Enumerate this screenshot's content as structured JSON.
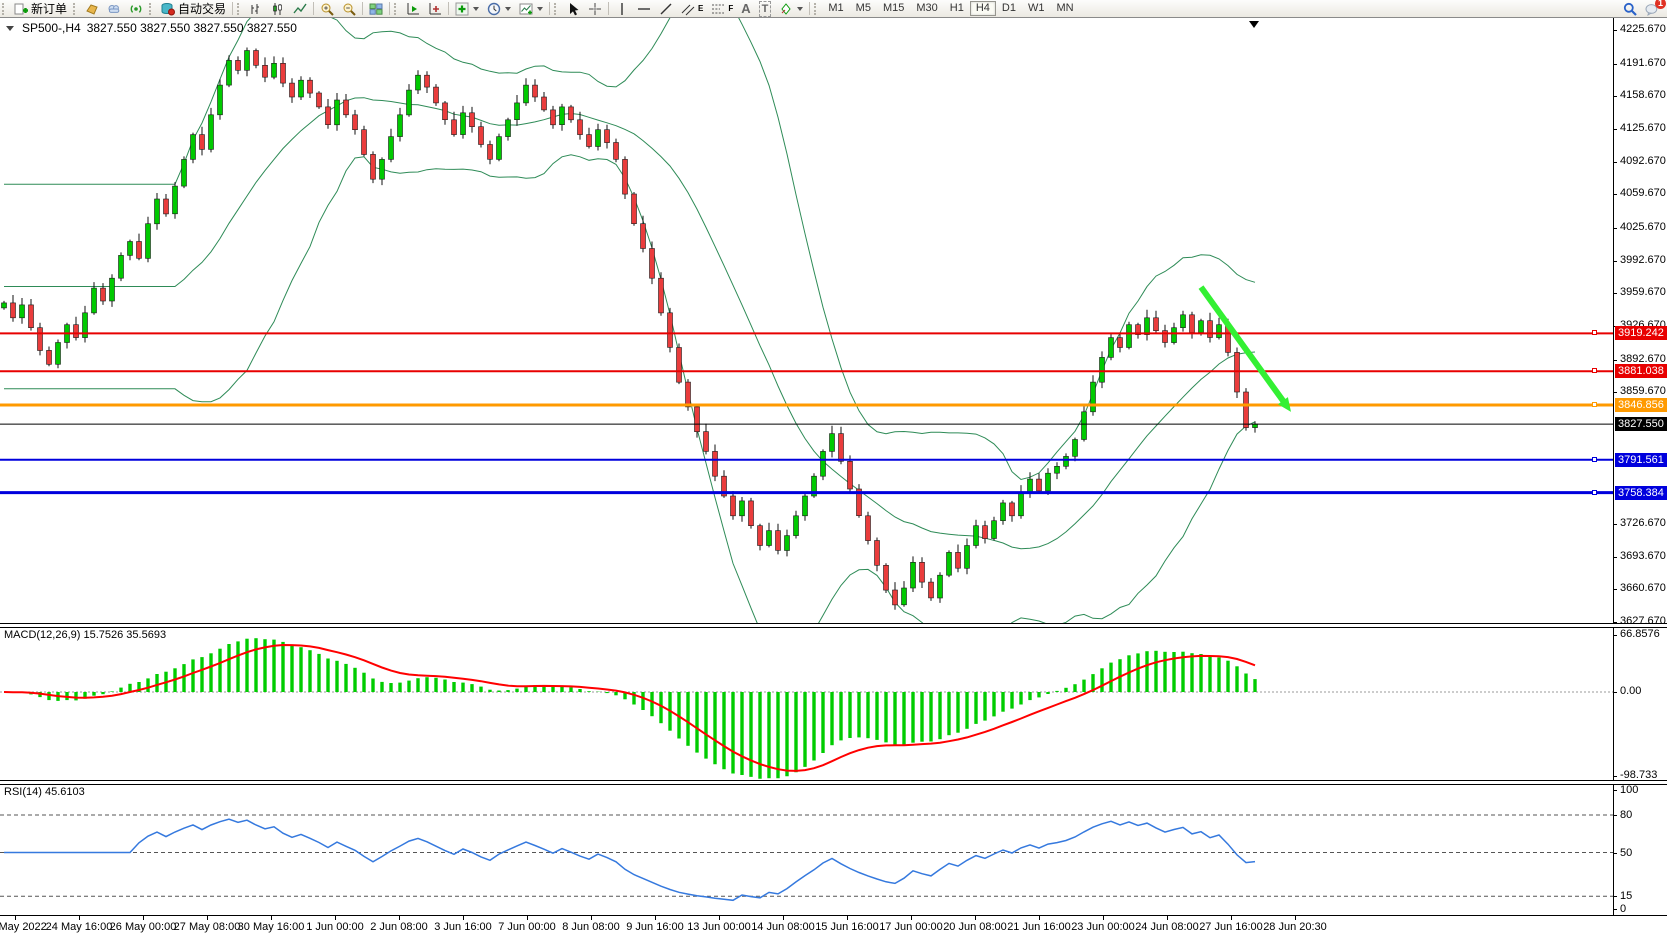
{
  "caption": {
    "symbol_period": "SP500-,H4",
    "ohlc_text": "3827.550 3827.550 3827.550 3827.550"
  },
  "toolbar": {
    "new_order_label": "新订单",
    "auto_trading_label": "自动交易",
    "glyph_a": "A",
    "glyph_t": "T",
    "glyph_e": "E",
    "glyph_f": "F",
    "timeframes": [
      "M1",
      "M5",
      "M15",
      "M30",
      "H1",
      "H4",
      "D1",
      "W1",
      "MN"
    ],
    "selected_timeframe": "H4",
    "badge_count": "1"
  },
  "chart_data": {
    "type": "candlestick",
    "symbol": "SP500-",
    "period": "H4",
    "price_axis_ticks": [
      4225.67,
      4191.67,
      4158.67,
      4125.67,
      4092.67,
      4059.67,
      4025.67,
      3992.67,
      3959.67,
      3926.67,
      3892.67,
      3859.67,
      3726.67,
      3693.67,
      3660.67,
      3627.67
    ],
    "hlines": [
      {
        "price": 3919.242,
        "color": "#e80000",
        "thickness": 2,
        "marker": true
      },
      {
        "price": 3881.038,
        "color": "#e80000",
        "thickness": 2,
        "marker": true
      },
      {
        "price": 3846.856,
        "color": "#ff9a00",
        "thickness": 3,
        "marker": true
      },
      {
        "price": 3827.55,
        "color": "#000000",
        "thickness": 1,
        "marker": false
      },
      {
        "price": 3791.561,
        "color": "#0000dd",
        "thickness": 2,
        "marker": true
      },
      {
        "price": 3758.384,
        "color": "#0000dd",
        "thickness": 3,
        "marker": true
      }
    ],
    "candles": {
      "closes": [
        3950,
        3935,
        3948,
        3925,
        3902,
        3888,
        3910,
        3928,
        3915,
        3940,
        3965,
        3952,
        3975,
        3998,
        4012,
        3995,
        4030,
        4055,
        4040,
        4068,
        4095,
        4120,
        4105,
        4140,
        4170,
        4195,
        4185,
        4205,
        4190,
        4178,
        4192,
        4172,
        4158,
        4175,
        4162,
        4148,
        4130,
        4155,
        4140,
        4125,
        4100,
        4075,
        4095,
        4118,
        4140,
        4165,
        4180,
        4168,
        4152,
        4135,
        4120,
        4142,
        4128,
        4110,
        4095,
        4118,
        4135,
        4152,
        4170,
        4158,
        4145,
        4130,
        4148,
        4135,
        4120,
        4108,
        4125,
        4112,
        4095,
        4060,
        4030,
        4005,
        3975,
        3940,
        3905,
        3870,
        3845,
        3820,
        3800,
        3775,
        3755,
        3735,
        3750,
        3725,
        3705,
        3720,
        3700,
        3715,
        3735,
        3755,
        3775,
        3800,
        3818,
        3790,
        3762,
        3735,
        3710,
        3685,
        3660,
        3645,
        3662,
        3688,
        3668,
        3652,
        3675,
        3698,
        3682,
        3705,
        3725,
        3712,
        3730,
        3748,
        3735,
        3758,
        3772,
        3760,
        3778,
        3785,
        3795,
        3812,
        3840,
        3870,
        3895,
        3915,
        3905,
        3928,
        3918,
        3935,
        3922,
        3910,
        3925,
        3938,
        3920,
        3932,
        3915,
        3928,
        3900,
        3860,
        3824,
        3827.55
      ]
    },
    "bollinger": {
      "period": 20,
      "deviation": 2,
      "color": "#2e8b57"
    },
    "macd": {
      "label": "MACD(12,26,9)",
      "values_text": "15.7526 35.5693",
      "axis_labels": [
        "66.8576",
        "0.00",
        "-98.733"
      ],
      "histogram_color": "#00cc00",
      "signal_color": "#ff0000"
    },
    "rsi": {
      "label": "RSI(14)",
      "value_text": "45.6103",
      "levels": [
        80,
        50,
        15
      ],
      "axis_labels": [
        "100",
        "80",
        "50",
        "15",
        "0"
      ],
      "color": "#3579de"
    },
    "time_labels": [
      "23 May 2022",
      "24 May 16:00",
      "26 May 00:00",
      "27 May 08:00",
      "30 May 16:00",
      "1 Jun 00:00",
      "2 Jun 08:00",
      "3 Jun 16:00",
      "7 Jun 00:00",
      "8 Jun 08:00",
      "9 Jun 16:00",
      "13 Jun 00:00",
      "14 Jun 08:00",
      "15 Jun 16:00",
      "17 Jun 00:00",
      "20 Jun 08:00",
      "21 Jun 16:00",
      "23 Jun 00:00",
      "24 Jun 08:00",
      "27 Jun 16:00",
      "28 Jun 20:30"
    ],
    "annotation_arrow": {
      "from_bar": 133,
      "from_price": 3966,
      "to_bar": 143,
      "to_price": 3840,
      "color": "#33f033"
    },
    "colors": {
      "up": "#00ca00",
      "down": "#ea3c3c",
      "wick": "#111111"
    }
  }
}
